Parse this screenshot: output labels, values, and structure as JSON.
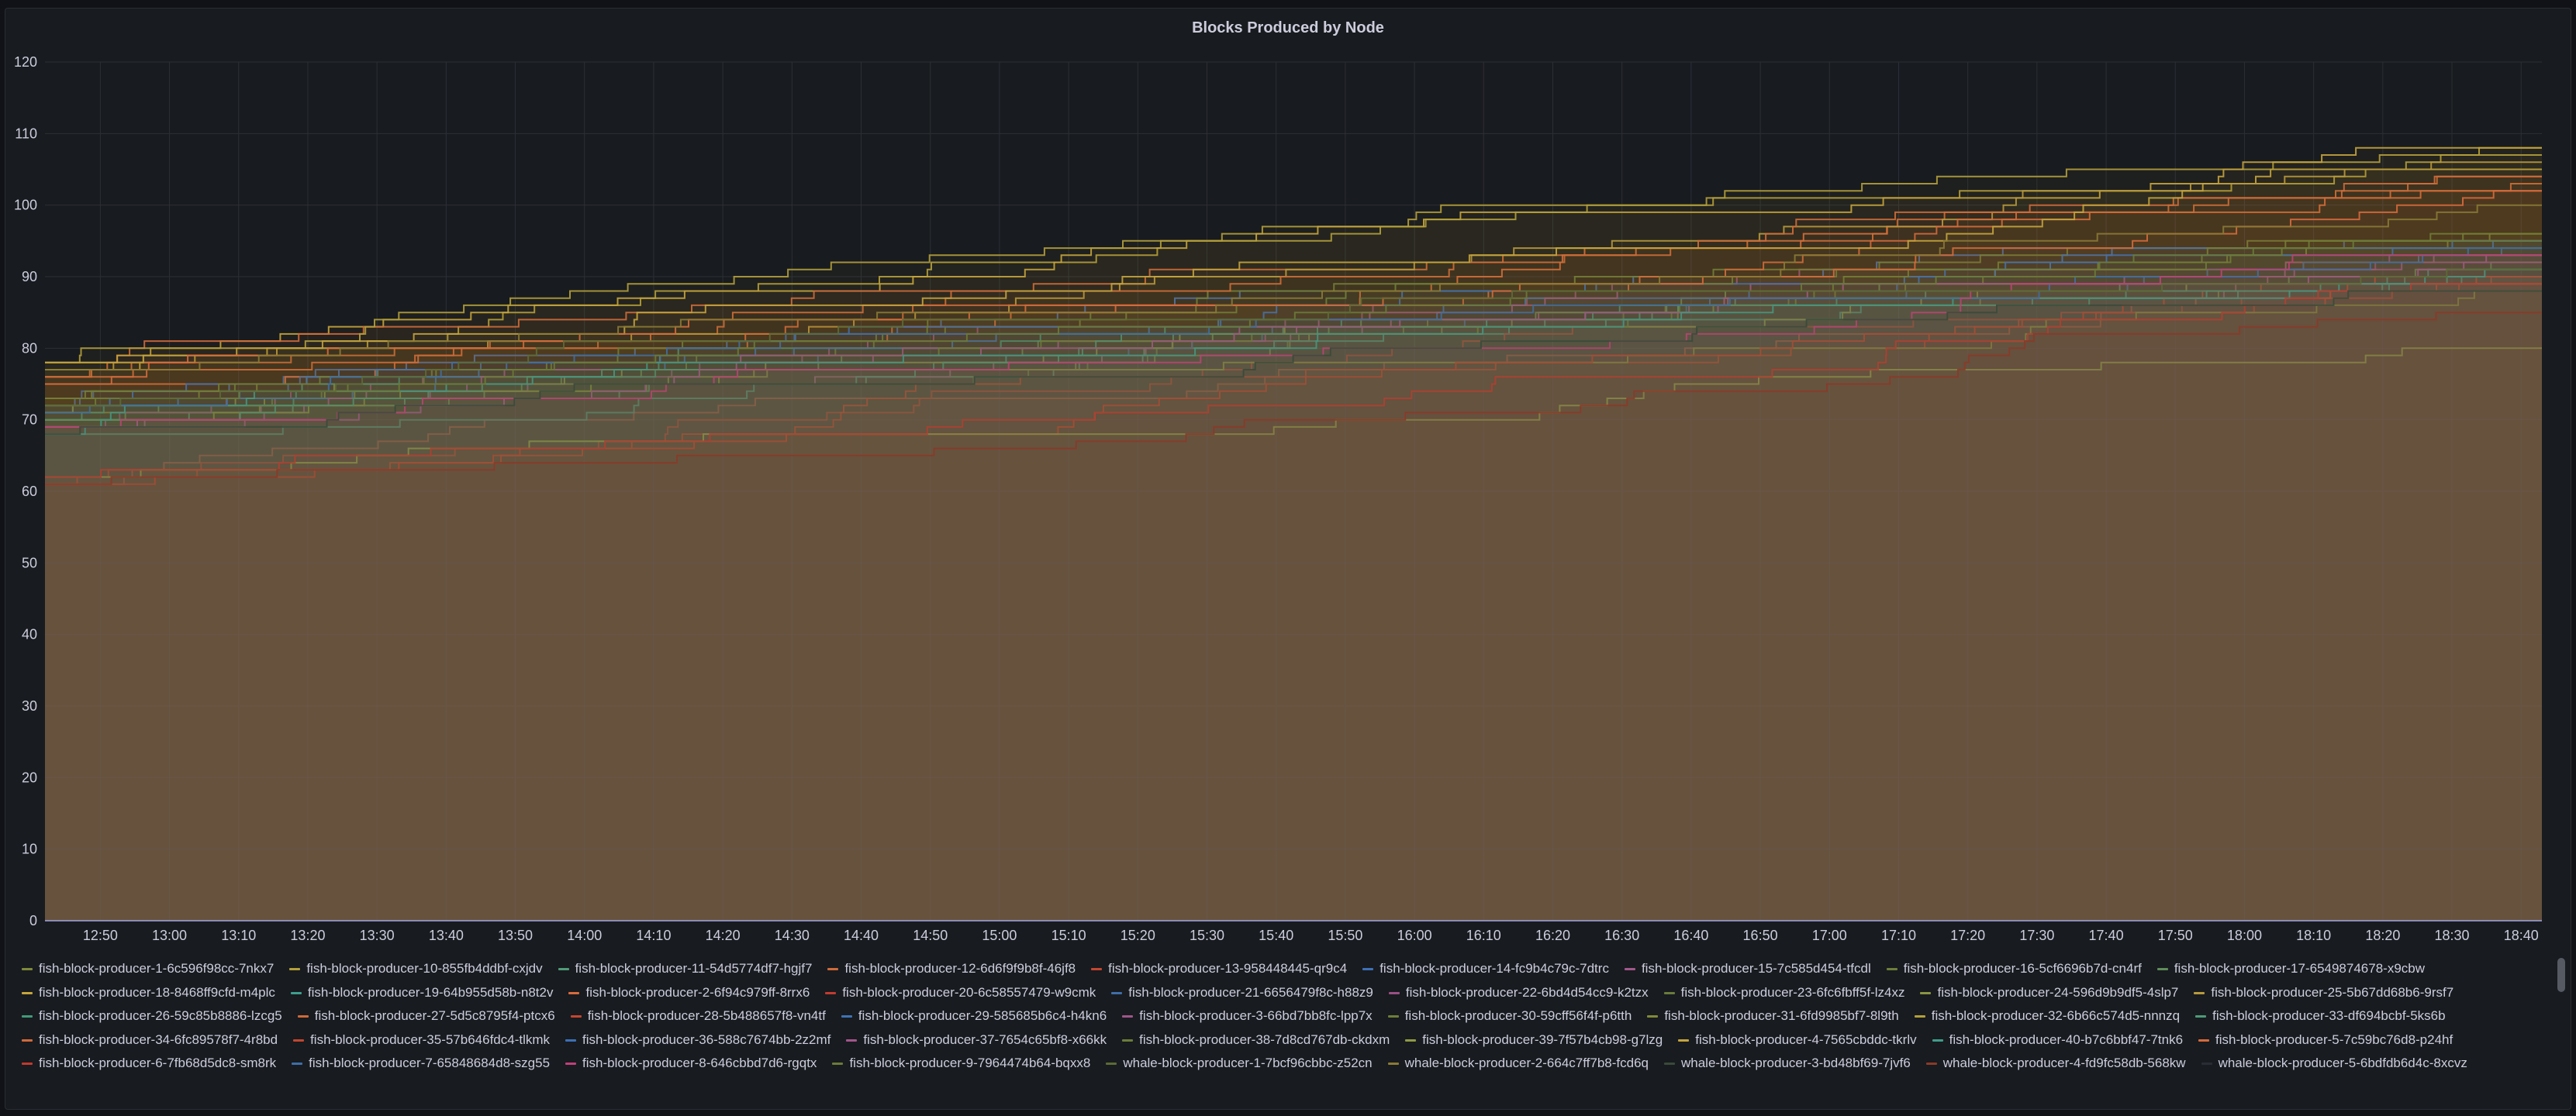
{
  "chart_data": {
    "type": "line",
    "title": "Blocks Produced by Node",
    "xlabel": "",
    "ylabel": "",
    "ylim": [
      0,
      120
    ],
    "yticks": [
      0,
      10,
      20,
      30,
      40,
      50,
      60,
      70,
      80,
      90,
      100,
      110,
      120
    ],
    "xlim": [
      "12:42",
      "18:43"
    ],
    "xticks": [
      "12:50",
      "13:00",
      "13:10",
      "13:20",
      "13:30",
      "13:40",
      "13:50",
      "14:00",
      "14:10",
      "14:20",
      "14:30",
      "14:40",
      "14:50",
      "15:00",
      "15:10",
      "15:20",
      "15:30",
      "15:40",
      "15:50",
      "16:00",
      "16:10",
      "16:20",
      "16:30",
      "16:40",
      "16:50",
      "17:00",
      "17:10",
      "17:20",
      "17:30",
      "17:40",
      "17:50",
      "18:00",
      "18:10",
      "18:20",
      "18:30",
      "18:40"
    ],
    "grid": true,
    "legend_position": "bottom",
    "series": [
      {
        "name": "fish-block-producer-1-6c596f98cc-7nkx7",
        "color": "#7e8a3a",
        "start": 71,
        "end": 88
      },
      {
        "name": "fish-block-producer-10-855fb4ddbf-cxjdv",
        "color": "#b5a03a",
        "start": 78,
        "end": 108
      },
      {
        "name": "fish-block-producer-11-54d5774df7-hgjf7",
        "color": "#4f9b7a",
        "start": 70,
        "end": 90
      },
      {
        "name": "fish-block-producer-12-6d6f9f9b8f-46jf8",
        "color": "#d0693a",
        "start": 76,
        "end": 104
      },
      {
        "name": "fish-block-producer-13-958448445-qr9c4",
        "color": "#c4462f",
        "start": 61,
        "end": 90
      },
      {
        "name": "fish-block-producer-14-fc9b4c79c-7dtrc",
        "color": "#3d71b8",
        "start": 72,
        "end": 95
      },
      {
        "name": "fish-block-producer-15-7c585d454-tfcdl",
        "color": "#a3578d",
        "start": 69,
        "end": 93
      },
      {
        "name": "fish-block-producer-16-5cf6696b7d-cn4rf",
        "color": "#6d7f3a",
        "start": 73,
        "end": 96
      },
      {
        "name": "fish-block-producer-17-6549874678-x9cbw",
        "color": "#5e8c5a",
        "start": 70,
        "end": 92
      },
      {
        "name": "fish-block-producer-18-8468ff9cfd-m4plc",
        "color": "#c7a53c",
        "start": 77,
        "end": 105
      },
      {
        "name": "fish-block-producer-19-64b955d58b-n8t2v",
        "color": "#3d9e8f",
        "start": 68,
        "end": 91
      },
      {
        "name": "fish-block-producer-2-6f94c979ff-8rrx6",
        "color": "#d86b3c",
        "start": 75,
        "end": 102
      },
      {
        "name": "fish-block-producer-20-6c58557479-w9cmk",
        "color": "#c23b30",
        "start": 62,
        "end": 89
      },
      {
        "name": "fish-block-producer-21-6656479f8c-h88z9",
        "color": "#3e6ea8",
        "start": 71,
        "end": 94
      },
      {
        "name": "fish-block-producer-22-6bd4d54cc9-k2tzx",
        "color": "#9a4f84",
        "start": 69,
        "end": 93
      },
      {
        "name": "fish-block-producer-23-6fc6fbff5f-lz4xz",
        "color": "#6a7c3b",
        "start": 72,
        "end": 95
      },
      {
        "name": "fish-block-producer-24-596d9b9df5-4slp7",
        "color": "#8a9443",
        "start": 71,
        "end": 89
      },
      {
        "name": "fish-block-producer-25-5b67dd68b6-9rsf7",
        "color": "#b89a3d",
        "start": 77,
        "end": 106
      },
      {
        "name": "fish-block-producer-26-59c85b8886-lzcg5",
        "color": "#429a78",
        "start": 70,
        "end": 90
      },
      {
        "name": "fish-block-producer-27-5d5c8795f4-ptcx6",
        "color": "#cf6a3a",
        "start": 76,
        "end": 103
      },
      {
        "name": "fish-block-producer-28-5b488657f8-vn4tf",
        "color": "#c4462f",
        "start": 61,
        "end": 90
      },
      {
        "name": "fish-block-producer-29-585685b6c4-h4kn6",
        "color": "#3f73b5",
        "start": 72,
        "end": 95
      },
      {
        "name": "fish-block-producer-3-66bd7bb8fc-lpp7x",
        "color": "#a0558a",
        "start": 69,
        "end": 92
      },
      {
        "name": "fish-block-producer-30-59cff56f4f-p6tth",
        "color": "#6c7e39",
        "start": 73,
        "end": 96
      },
      {
        "name": "fish-block-producer-31-6fd9985bf7-8l9th",
        "color": "#7f8b3b",
        "start": 70,
        "end": 88
      },
      {
        "name": "fish-block-producer-32-6b66c574d5-nnnzq",
        "color": "#b3a03b",
        "start": 78,
        "end": 107
      },
      {
        "name": "fish-block-producer-33-df694bcbf-5ks6b",
        "color": "#4e9a79",
        "start": 70,
        "end": 90
      },
      {
        "name": "fish-block-producer-34-6fc89578f7-4r8bd",
        "color": "#d06a3b",
        "start": 76,
        "end": 104
      },
      {
        "name": "fish-block-producer-35-57b646fdc4-tlkmk",
        "color": "#c3452f",
        "start": 61,
        "end": 90
      },
      {
        "name": "fish-block-producer-36-588c7674bb-2z2mf",
        "color": "#3c70b7",
        "start": 72,
        "end": 95
      },
      {
        "name": "fish-block-producer-37-7654c65bf8-x66kk",
        "color": "#a2568c",
        "start": 69,
        "end": 93
      },
      {
        "name": "fish-block-producer-38-7d8cd767db-ckdxm",
        "color": "#6b7d39",
        "start": 73,
        "end": 96
      },
      {
        "name": "fish-block-producer-39-7f57b4cb98-g7lzg",
        "color": "#8f9a45",
        "start": 62,
        "end": 80
      },
      {
        "name": "fish-block-producer-4-7565cbddc-tkrlv",
        "color": "#c4a43d",
        "start": 78,
        "end": 108
      },
      {
        "name": "fish-block-producer-40-b7c6bbf47-7tnk6",
        "color": "#3f9d8c",
        "start": 68,
        "end": 91
      },
      {
        "name": "fish-block-producer-5-7c59bc76d8-p24hf",
        "color": "#d76a3c",
        "start": 75,
        "end": 102
      },
      {
        "name": "fish-block-producer-6-7fb68d5dc8-sm8rk",
        "color": "#c13a2f",
        "start": 62,
        "end": 89
      },
      {
        "name": "fish-block-producer-7-65848684d8-szg55",
        "color": "#3d6fa9",
        "start": 71,
        "end": 94
      },
      {
        "name": "fish-block-producer-8-646cbbd7d6-rgqtx",
        "color": "#c0407a",
        "start": 69,
        "end": 93
      },
      {
        "name": "fish-block-producer-9-7964474b64-bqxx8",
        "color": "#6b7b3a",
        "start": 72,
        "end": 95
      },
      {
        "name": "whale-block-producer-1-7bcf96cbbc-z52cn",
        "color": "#5c6a36",
        "start": 72,
        "end": 91
      },
      {
        "name": "whale-block-producer-2-664c7ff7b8-fcd6q",
        "color": "#8a7a35",
        "start": 77,
        "end": 100
      },
      {
        "name": "whale-block-producer-3-bd48bf69-7jvf6",
        "color": "#3a4a3a",
        "start": 68,
        "end": 88
      },
      {
        "name": "whale-block-producer-4-fd9fc58db-568kw",
        "color": "#8a3a28",
        "start": 61,
        "end": 85
      },
      {
        "name": "whale-block-producer-5-6bdfdb6d4c-8xcvz",
        "color": "#2a2d33",
        "start": 0,
        "end": 0
      }
    ]
  }
}
